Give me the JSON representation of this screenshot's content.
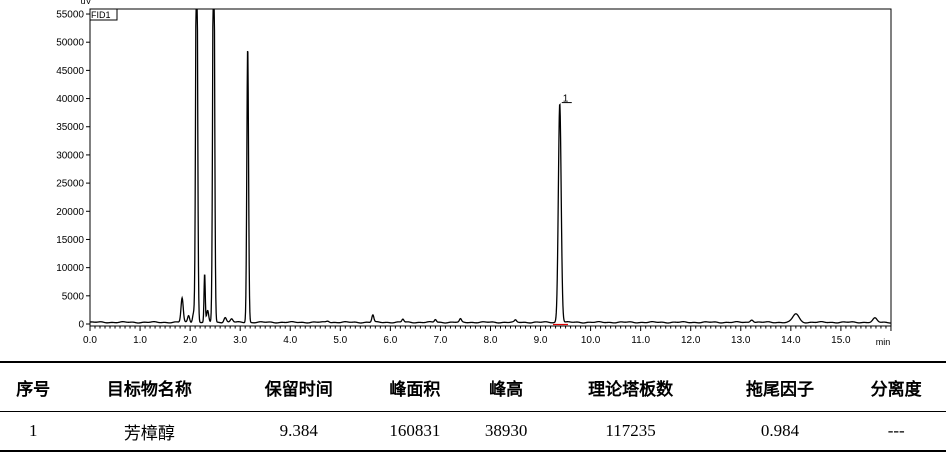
{
  "chart_data": {
    "type": "line",
    "y_unit": "uV",
    "x_unit": "min",
    "trace_label": "FID1",
    "xlim": [
      0,
      16
    ],
    "ylim": [
      0,
      57000
    ],
    "x_ticks": [
      "0.0",
      "1.0",
      "2.0",
      "3.0",
      "4.0",
      "5.0",
      "6.0",
      "7.0",
      "8.0",
      "9.0",
      "10.0",
      "11.0",
      "12.0",
      "13.0",
      "14.0",
      "15.0"
    ],
    "y_ticks": [
      "0",
      "5000",
      "10000",
      "15000",
      "20000",
      "25000",
      "30000",
      "35000",
      "40000",
      "45000",
      "50000",
      "55000"
    ],
    "y_tick_values": [
      0,
      5000,
      10000,
      15000,
      20000,
      25000,
      30000,
      35000,
      40000,
      45000,
      50000,
      55000
    ],
    "baseline": 300,
    "peaks": [
      {
        "rt": 1.84,
        "h": 4300,
        "w": 0.022
      },
      {
        "rt": 1.97,
        "h": 1200,
        "w": 0.02
      },
      {
        "rt": 2.07,
        "h": 1700,
        "w": 0.02
      },
      {
        "rt": 2.13,
        "h": 80000,
        "w": 0.018
      },
      {
        "rt": 2.29,
        "h": 8600,
        "w": 0.012
      },
      {
        "rt": 2.35,
        "h": 2000,
        "w": 0.02
      },
      {
        "rt": 2.47,
        "h": 80000,
        "w": 0.018
      },
      {
        "rt": 2.7,
        "h": 900,
        "w": 0.025
      },
      {
        "rt": 2.83,
        "h": 600,
        "w": 0.025
      },
      {
        "rt": 3.15,
        "h": 49000,
        "w": 0.017
      },
      {
        "rt": 4.75,
        "h": 250,
        "w": 0.03
      },
      {
        "rt": 5.65,
        "h": 1300,
        "w": 0.02
      },
      {
        "rt": 6.25,
        "h": 550,
        "w": 0.02
      },
      {
        "rt": 6.9,
        "h": 500,
        "w": 0.02
      },
      {
        "rt": 7.4,
        "h": 550,
        "w": 0.02
      },
      {
        "rt": 8.5,
        "h": 350,
        "w": 0.02
      },
      {
        "rt": 9.384,
        "h": 38930,
        "w": 0.028
      },
      {
        "rt": 13.22,
        "h": 500,
        "w": 0.03
      },
      {
        "rt": 14.1,
        "h": 1500,
        "w": 0.06
      },
      {
        "rt": 15.68,
        "h": 700,
        "w": 0.04
      }
    ],
    "annotations": [
      {
        "text": "1",
        "x": 9.384,
        "y": 38930
      }
    ]
  },
  "table": {
    "headers": [
      "序号",
      "目标物名称",
      "保留时间",
      "峰面积",
      "峰高",
      "理论塔板数",
      "拖尾因子",
      "分离度"
    ],
    "rows": [
      [
        "1",
        "芳樟醇",
        "9.384",
        "160831",
        "38930",
        "117235",
        "0.984",
        "---"
      ]
    ]
  }
}
